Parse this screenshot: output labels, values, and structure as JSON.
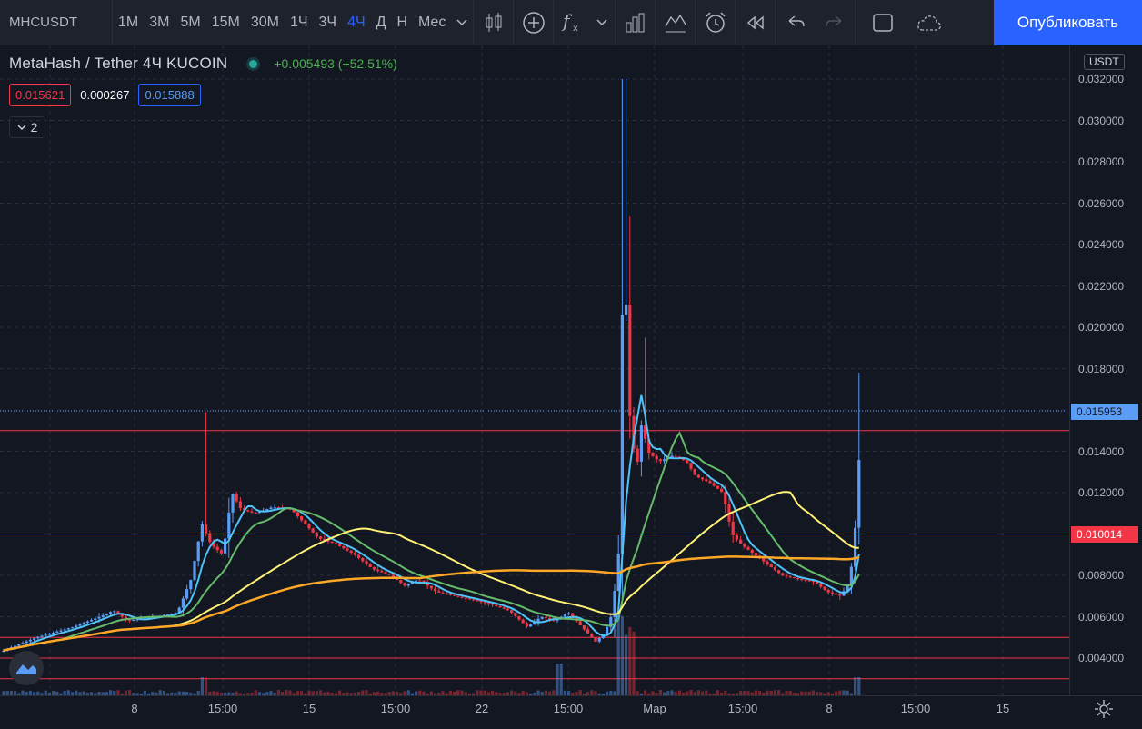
{
  "toolbar": {
    "symbol": "MHCUSDT",
    "intervals": [
      "1M",
      "3M",
      "5M",
      "15M",
      "30M",
      "1Ч",
      "3Ч",
      "4Ч",
      "Д",
      "Н",
      "Мес"
    ],
    "active_interval": "4Ч",
    "icons": [
      "chevron-down-icon",
      "candles-icon",
      "add-compare-icon",
      "indicators-icon",
      "chevron-down-icon",
      "templates-icon",
      "chart-layout-icon",
      "alert-icon",
      "replay-icon",
      "undo-icon",
      "redo-icon",
      "fullscreen-icon",
      "cloud-save-icon"
    ],
    "publish_label": "Опубликовать"
  },
  "legend": {
    "title": "MetaHash / Tether  4Ч  KUCOIN",
    "change": "+0.005493 (+52.51%)",
    "bid": "0.015621",
    "spread": "0.000267",
    "ask": "0.015888",
    "indicator_count": "2"
  },
  "price_axis": {
    "currency": "USDT",
    "ticks": [
      "0.032000",
      "0.030000",
      "0.028000",
      "0.026000",
      "0.024000",
      "0.022000",
      "0.020000",
      "0.018000",
      "0.014000",
      "0.012000",
      "0.008000",
      "0.006000",
      "0.004000"
    ],
    "last_price": "0.015953",
    "line_price": "0.010014"
  },
  "time_axis": {
    "ticks": [
      "8",
      "15:00",
      "15",
      "15:00",
      "22",
      "15:00",
      "Мар",
      "15:00",
      "8",
      "15:00",
      "15"
    ]
  },
  "colors": {
    "up": "#5b9cf6",
    "down": "#f23645",
    "ma_fast": "#4fc3f7",
    "ma_mid": "#66bb6a",
    "ma_slow": "#fff176",
    "ma_long": "#ffa726",
    "hline": "#f23645"
  },
  "chart_data": {
    "type": "candlestick",
    "title": "",
    "xlabel": "",
    "ylabel": "",
    "ylim": [
      0.0027,
      0.0324
    ],
    "horizontal_lines": [
      0.015,
      0.01,
      0.005,
      0.004,
      0.003
    ],
    "candles_summary": {
      "period_high": 0.032,
      "period_low": 0.0045,
      "last_close": 0.015953
    }
  }
}
